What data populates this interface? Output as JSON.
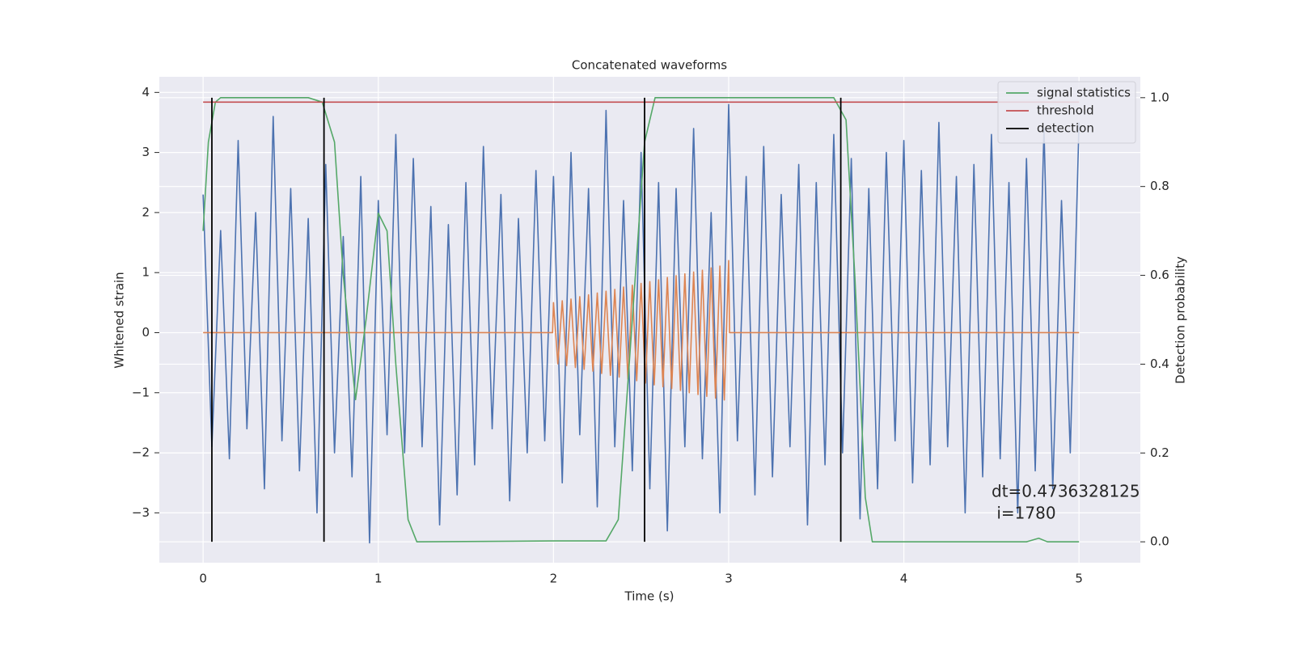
{
  "chart_data": {
    "type": "line",
    "title": "Concatenated waveforms",
    "xlabel": "Time (s)",
    "ylabel": "Whitened strain",
    "y2label": "Detection probability",
    "xlim": [
      -0.25,
      5.35
    ],
    "ylim": [
      -3.83,
      4.26
    ],
    "y2lim": [
      -0.047,
      1.047
    ],
    "xticks": [
      0,
      1,
      2,
      3,
      4,
      5
    ],
    "yticks": [
      {
        "value": -3,
        "label": "−3"
      },
      {
        "value": -2,
        "label": "−2"
      },
      {
        "value": -1,
        "label": "−1"
      },
      0,
      1,
      2,
      3,
      4
    ],
    "y2ticks": [
      {
        "value": 0,
        "label": "0.0"
      },
      0.2,
      0.4,
      0.6,
      0.8,
      {
        "value": 1,
        "label": "1.0"
      }
    ],
    "grid": true,
    "legend_loc": "upper right",
    "series": [
      {
        "color": "#4c72b0",
        "axis": "y",
        "x": [
          0,
          0.05,
          0.1,
          0.15,
          0.2,
          0.25,
          0.3,
          0.35,
          0.4,
          0.45,
          0.5,
          0.55,
          0.6,
          0.65,
          0.7,
          0.75,
          0.8,
          0.85,
          0.9,
          0.95,
          1,
          1.05,
          1.1,
          1.15,
          1.2,
          1.25,
          1.3,
          1.35,
          1.4,
          1.45,
          1.5,
          1.55,
          1.6,
          1.65,
          1.7,
          1.75,
          1.8,
          1.85,
          1.9,
          1.95,
          2,
          2.05,
          2.1,
          2.15,
          2.2,
          2.25,
          2.3,
          2.35,
          2.4,
          2.45,
          2.5,
          2.55,
          2.6,
          2.65,
          2.7,
          2.75,
          2.8,
          2.85,
          2.9,
          2.95,
          3,
          3.05,
          3.1,
          3.15,
          3.2,
          3.25,
          3.3,
          3.35,
          3.4,
          3.45,
          3.5,
          3.55,
          3.6,
          3.65,
          3.7,
          3.75,
          3.8,
          3.85,
          3.9,
          3.95,
          4,
          4.05,
          4.1,
          4.15,
          4.2,
          4.25,
          4.3,
          4.35,
          4.4,
          4.45,
          4.5,
          4.55,
          4.6,
          4.65,
          4.7,
          4.75,
          4.8,
          4.85,
          4.9,
          4.95,
          5
        ],
        "values": [
          2.3,
          -1.9,
          1.7,
          -2.1,
          3.2,
          -1.6,
          2.0,
          -2.6,
          3.6,
          -1.8,
          2.4,
          -2.3,
          1.9,
          -3.0,
          2.8,
          -2.0,
          1.6,
          -2.4,
          2.6,
          -3.5,
          2.2,
          -1.7,
          3.3,
          -2.0,
          2.9,
          -1.9,
          2.1,
          -3.2,
          1.8,
          -2.7,
          2.5,
          -2.2,
          3.1,
          -1.6,
          2.3,
          -2.8,
          1.9,
          -2.0,
          2.7,
          -1.8,
          2.6,
          -2.5,
          3.0,
          -1.7,
          2.4,
          -2.9,
          3.7,
          -1.9,
          2.2,
          -2.3,
          3.0,
          -2.6,
          2.5,
          -3.3,
          2.4,
          -1.9,
          3.4,
          -2.1,
          2.0,
          -3.0,
          3.8,
          -1.8,
          2.6,
          -2.7,
          3.1,
          -2.4,
          2.3,
          -1.9,
          2.8,
          -3.2,
          2.5,
          -2.2,
          3.3,
          -2.0,
          2.9,
          -3.1,
          2.4,
          -2.6,
          3.0,
          -1.8,
          3.2,
          -2.5,
          2.7,
          -2.2,
          3.5,
          -1.9,
          2.6,
          -3.0,
          2.8,
          -2.4,
          3.3,
          -2.1,
          2.5,
          -3.0,
          2.9,
          -2.3,
          3.4,
          -2.6,
          2.2,
          -2.0,
          3.5
        ]
      },
      {
        "color": "#dd8452",
        "axis": "y",
        "x": [
          0,
          1.995,
          2,
          2.025,
          2.05,
          2.075,
          2.1,
          2.125,
          2.15,
          2.175,
          2.2,
          2.225,
          2.25,
          2.275,
          2.3,
          2.325,
          2.35,
          2.375,
          2.4,
          2.425,
          2.45,
          2.475,
          2.5,
          2.525,
          2.55,
          2.575,
          2.6,
          2.625,
          2.65,
          2.675,
          2.7,
          2.725,
          2.75,
          2.775,
          2.8,
          2.825,
          2.85,
          2.875,
          2.9,
          2.925,
          2.95,
          2.975,
          3,
          3.005,
          5
        ],
        "values": [
          0,
          0,
          0.5,
          -0.52,
          0.53,
          -0.55,
          0.56,
          -0.58,
          0.6,
          -0.61,
          0.63,
          -0.64,
          0.66,
          -0.68,
          0.69,
          -0.71,
          0.72,
          -0.74,
          0.76,
          -0.77,
          0.79,
          -0.8,
          0.82,
          -0.84,
          0.85,
          -0.87,
          0.88,
          -0.9,
          0.92,
          -0.93,
          0.95,
          -0.96,
          0.98,
          -1.0,
          1.01,
          -1.03,
          1.04,
          -1.06,
          1.08,
          -1.09,
          1.11,
          -1.12,
          1.2,
          0,
          0
        ]
      },
      {
        "name": "signal statistics",
        "color": "#55a868",
        "axis": "y2",
        "x": [
          0,
          0.03,
          0.07,
          0.1,
          0.6,
          0.68,
          0.75,
          0.8,
          0.87,
          0.93,
          1.0,
          1.05,
          1.1,
          1.17,
          1.22,
          2.0,
          2.3,
          2.37,
          2.45,
          2.52,
          2.58,
          3.6,
          3.67,
          3.72,
          3.78,
          3.82,
          4.7,
          4.77,
          4.82,
          5.0
        ],
        "values": [
          0.7,
          0.9,
          0.99,
          1.0,
          1.0,
          0.99,
          0.9,
          0.6,
          0.32,
          0.5,
          0.74,
          0.7,
          0.4,
          0.05,
          0.0,
          0.002,
          0.002,
          0.05,
          0.5,
          0.9,
          1.0,
          1.0,
          0.95,
          0.6,
          0.1,
          0.0,
          0.0,
          0.008,
          0.0,
          0.0
        ]
      },
      {
        "name": "threshold",
        "color": "#c44e52",
        "axis": "y2",
        "x": [
          0,
          5
        ],
        "values": [
          0.99,
          0.99
        ]
      }
    ],
    "detection": {
      "name": "detection",
      "color": "#000000",
      "x": [
        0.05,
        0.69,
        2.52,
        3.64
      ],
      "y_range": [
        0,
        1
      ]
    },
    "annotation": [
      "dt=0.4736328125",
      " i=1780"
    ]
  }
}
